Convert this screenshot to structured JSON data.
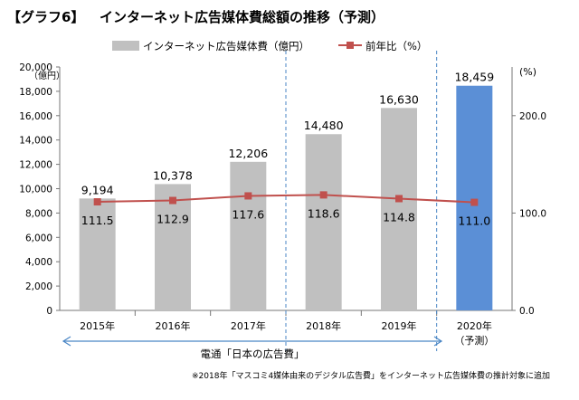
{
  "header": {
    "tag": "【グラフ6】",
    "title": "インターネット広告媒体費総額の推移（予測）"
  },
  "chart_data": {
    "type": "bar",
    "categories": [
      "2015年",
      "2016年",
      "2017年",
      "2018年",
      "2019年",
      "2020年"
    ],
    "category_sublabels": [
      "",
      "",
      "",
      "",
      "",
      "（予測）"
    ],
    "series": [
      {
        "name": "インターネット広告媒体費（億円）",
        "type": "bar",
        "axis": "left",
        "values": [
          9194,
          10378,
          12206,
          14480,
          16630,
          18459
        ],
        "labels": [
          "9,194",
          "10,378",
          "12,206",
          "14,480",
          "16,630",
          "18,459"
        ],
        "colors": [
          "#c0c0c0",
          "#c0c0c0",
          "#c0c0c0",
          "#c0c0c0",
          "#c0c0c0",
          "#5b8fd6"
        ]
      },
      {
        "name": "前年比（%）",
        "type": "line",
        "axis": "right",
        "values": [
          111.5,
          112.9,
          117.6,
          118.6,
          114.8,
          111.0
        ],
        "labels": [
          "111.5",
          "112.9",
          "117.6",
          "118.6",
          "114.8",
          "111.0"
        ],
        "color": "#c0504d"
      }
    ],
    "y_left": {
      "unit": "（億円）",
      "ylim": [
        0,
        20000
      ],
      "ticks": [
        0,
        2000,
        4000,
        6000,
        8000,
        10000,
        12000,
        14000,
        16000,
        18000,
        20000
      ],
      "tick_labels": [
        "0",
        "2,000",
        "4,000",
        "6,000",
        "8,000",
        "10,000",
        "12,000",
        "14,000",
        "16,000",
        "18,000",
        "20,000"
      ]
    },
    "y_right": {
      "unit": "(%)",
      "ylim": [
        0,
        250
      ],
      "ticks": [
        0,
        100,
        200
      ],
      "tick_labels": [
        "0.0",
        "100.0",
        "200.0"
      ]
    },
    "legend": {
      "placement": "top"
    },
    "annotations": {
      "bracket_label": "電通「日本の広告費」",
      "footnote": "※2018年「マスコミ4媒体由来のデジタル広告費」をインターネット広告媒体費の推計対象に追加"
    },
    "grid": false
  }
}
